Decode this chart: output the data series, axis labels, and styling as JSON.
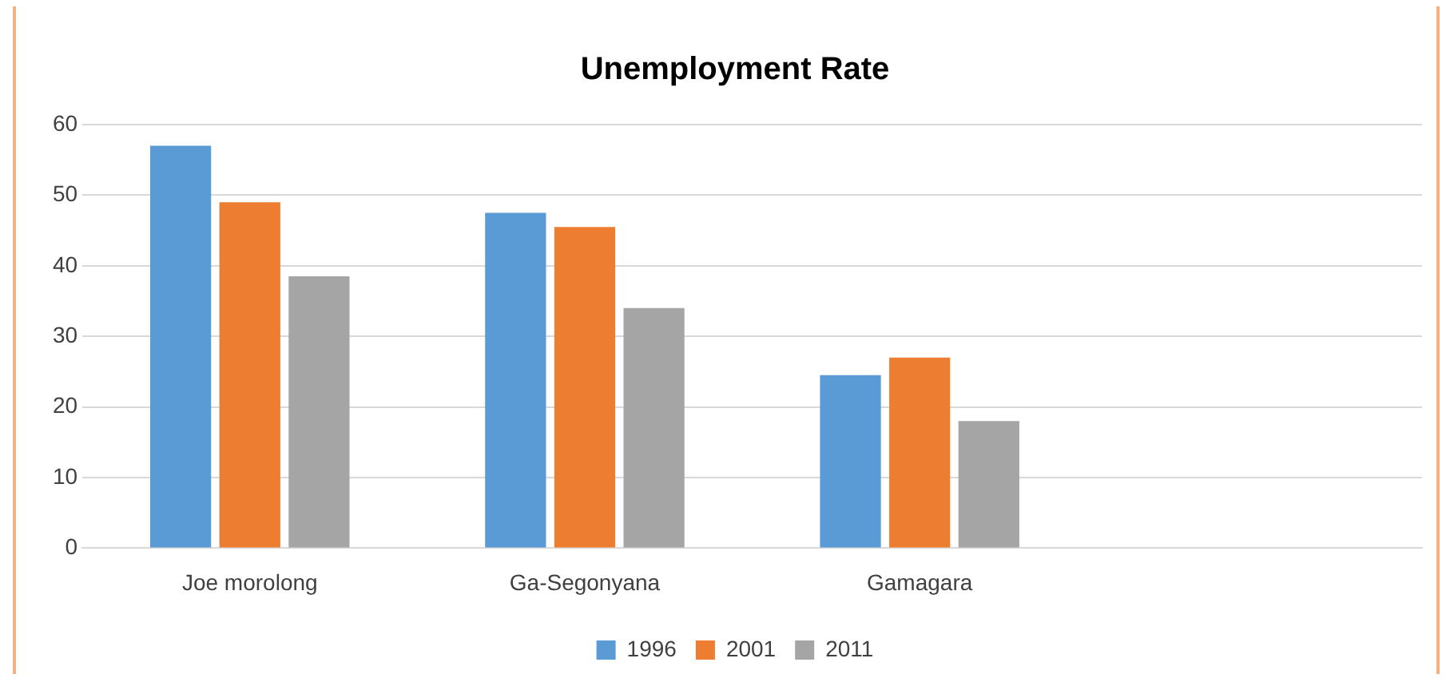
{
  "chart_data": {
    "type": "bar",
    "title": "Unemployment Rate",
    "categories": [
      "Joe morolong",
      "Ga-Segonyana",
      "Gamagara",
      null
    ],
    "series": [
      {
        "name": "1996",
        "color": "#5b9bd5",
        "values": [
          57,
          47.5,
          24.5,
          null
        ]
      },
      {
        "name": "2001",
        "color": "#ed7d31",
        "values": [
          49,
          45.5,
          27,
          null
        ]
      },
      {
        "name": "2011",
        "color": "#a5a5a5",
        "values": [
          38.5,
          34,
          18,
          null
        ]
      }
    ],
    "ylim": [
      0,
      60
    ],
    "yticks": [
      0,
      10,
      20,
      30,
      40,
      50,
      60
    ],
    "grid": "y",
    "legend": "bottom"
  }
}
